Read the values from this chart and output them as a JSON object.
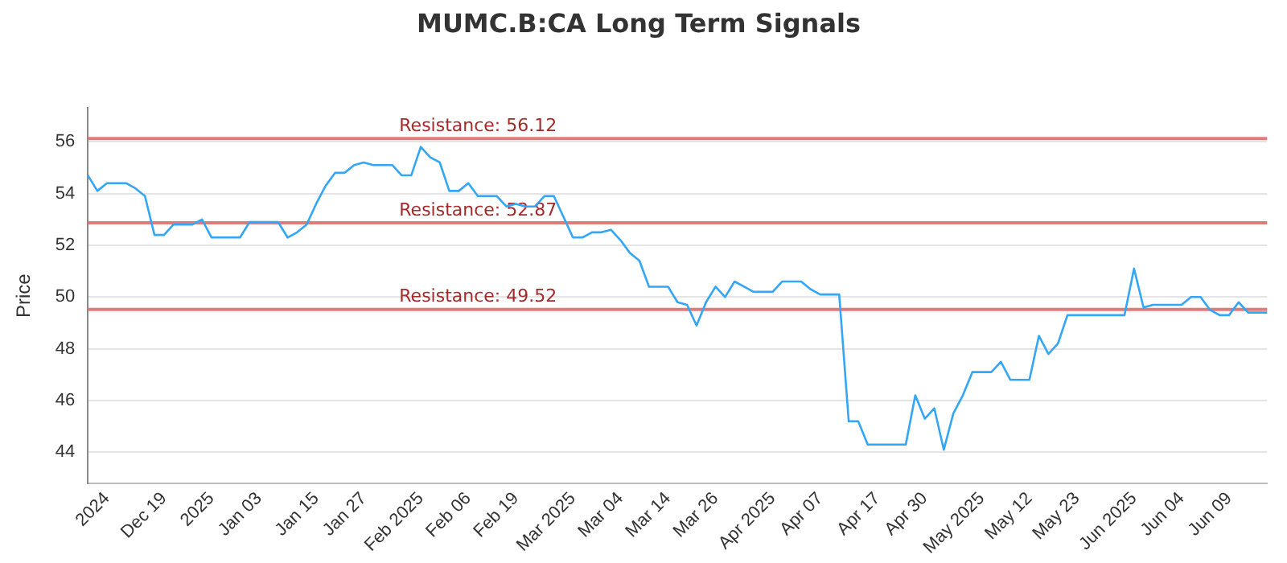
{
  "chart_data": {
    "type": "line",
    "title": "MUMC.B:CA Long Term Signals",
    "ylabel": "Price",
    "categories": [
      null,
      null,
      "2024",
      null,
      null,
      null,
      null,
      null,
      "Dec 19",
      null,
      null,
      null,
      null,
      "2025",
      null,
      null,
      null,
      null,
      "Jan 03",
      null,
      null,
      null,
      null,
      null,
      "Jan 15",
      null,
      null,
      null,
      null,
      "Jan 27",
      null,
      null,
      null,
      null,
      null,
      "Feb 2025",
      null,
      null,
      null,
      null,
      "Feb 06",
      null,
      null,
      null,
      null,
      "Feb 19",
      null,
      null,
      null,
      null,
      null,
      "Mar 2025",
      null,
      null,
      null,
      null,
      "Mar 04",
      null,
      null,
      null,
      null,
      "Mar 14",
      null,
      null,
      null,
      null,
      "Mar 26",
      null,
      null,
      null,
      null,
      null,
      "Apr 2025",
      null,
      null,
      null,
      null,
      "Apr 07",
      null,
      null,
      null,
      null,
      null,
      "Apr 17",
      null,
      null,
      null,
      null,
      "Apr 30",
      null,
      null,
      null,
      null,
      null,
      "May 2025",
      null,
      null,
      null,
      null,
      "May 12",
      null,
      null,
      null,
      null,
      "May 23",
      null,
      null,
      null,
      null,
      null,
      "Jun 2025",
      null,
      null,
      null,
      null,
      "Jun 04",
      null,
      null,
      null,
      null,
      "Jun 09",
      null,
      null,
      null,
      null
    ],
    "series": [
      {
        "color": "#33a6f5",
        "values": [
          54.7,
          54.1,
          54.4,
          54.4,
          54.4,
          54.2,
          53.9,
          52.4,
          52.4,
          52.8,
          52.8,
          52.8,
          53.0,
          52.3,
          52.3,
          52.3,
          52.3,
          52.9,
          52.9,
          52.9,
          52.9,
          52.3,
          52.5,
          52.8,
          53.6,
          54.3,
          54.8,
          54.8,
          55.1,
          55.2,
          55.1,
          55.1,
          55.1,
          54.7,
          54.7,
          55.8,
          55.4,
          55.2,
          54.1,
          54.1,
          54.4,
          53.9,
          53.9,
          53.9,
          53.5,
          53.6,
          53.5,
          53.5,
          53.9,
          53.9,
          53.1,
          52.3,
          52.3,
          52.5,
          52.5,
          52.6,
          52.2,
          51.7,
          51.4,
          50.4,
          50.4,
          50.4,
          49.8,
          49.7,
          48.9,
          49.8,
          50.4,
          50.0,
          50.6,
          50.4,
          50.2,
          50.2,
          50.2,
          50.6,
          50.6,
          50.6,
          50.3,
          50.1,
          50.1,
          50.1,
          45.2,
          45.2,
          44.3,
          44.3,
          44.3,
          44.3,
          44.3,
          46.2,
          45.3,
          45.7,
          44.1,
          45.5,
          46.2,
          47.1,
          47.1,
          47.1,
          47.5,
          46.8,
          46.8,
          46.8,
          48.5,
          47.8,
          48.2,
          49.3,
          49.3,
          49.3,
          49.3,
          49.3,
          49.3,
          49.3,
          51.1,
          49.6,
          49.7,
          49.7,
          49.7,
          49.7,
          50.0,
          50.0,
          49.5,
          49.3,
          49.3,
          49.8,
          49.4,
          49.4,
          49.4
        ]
      }
    ],
    "ylim": [
      42.8,
      57.3
    ],
    "yticks": [
      44,
      46,
      48,
      50,
      52,
      54,
      56
    ],
    "grid": "y",
    "legend": false,
    "marker": "none",
    "line_style": "solid",
    "ref_lines": [
      {
        "axis": "y",
        "value": 56.12,
        "label": "Resistance: 56.12",
        "color": "#e07b7b"
      },
      {
        "axis": "y",
        "value": 52.87,
        "label": "Resistance: 52.87",
        "color": "#e07b7b"
      },
      {
        "axis": "y",
        "value": 49.52,
        "label": "Resistance: 49.52",
        "color": "#e07b7b"
      }
    ]
  }
}
